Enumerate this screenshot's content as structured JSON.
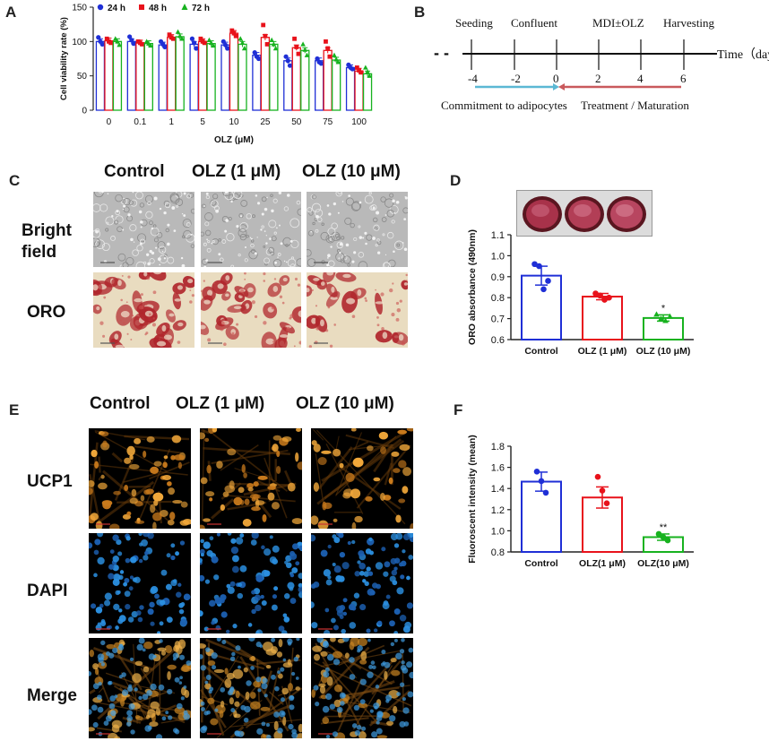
{
  "panels": {
    "a": "A",
    "b": "B",
    "c": "C",
    "d": "D",
    "e": "E",
    "f": "F"
  },
  "panel_c": {
    "columns": [
      "Control",
      "OLZ (1 μM)",
      "OLZ (10 μM)"
    ],
    "rows": [
      "Bright field",
      "ORO"
    ]
  },
  "panel_e": {
    "columns": [
      "Control",
      "OLZ (1 μM)",
      "OLZ (10 μM)"
    ],
    "rows": [
      "UCP1",
      "DAPI",
      "Merge"
    ]
  },
  "panel_b": {
    "dash": "- -",
    "events": [
      "Seeding",
      "Confluent",
      "MDI±OLZ",
      "Harvesting"
    ],
    "ticks": [
      "-4",
      "-2",
      "0",
      "2",
      "4",
      "6"
    ],
    "axis_label": "Time（days）",
    "phase1": "Commitment to adipocytes",
    "phase2": "Treatment / Maturation",
    "colors": {
      "phase1": "#5bb8d4",
      "phase2": "#c9595c"
    }
  },
  "chart_data": [
    {
      "id": "A",
      "type": "bar",
      "xlabel": "OLZ (μM)",
      "ylabel": "Cell viability rate (%)",
      "ylim": [
        0,
        150
      ],
      "yticks": [
        0,
        50,
        100,
        150
      ],
      "categories": [
        "0",
        "0.1",
        "1",
        "5",
        "10",
        "25",
        "50",
        "75",
        "100"
      ],
      "legend_position": "top-left",
      "series": [
        {
          "name": "24 h",
          "color": "#1f2fd6",
          "values": [
            100,
            100,
            95,
            96,
            95,
            80,
            72,
            72,
            62
          ],
          "points": [
            [
              106,
              100,
              96
            ],
            [
              107,
              102,
              97
            ],
            [
              100,
              96,
              92
            ],
            [
              104,
              98,
              90
            ],
            [
              100,
              95,
              90
            ],
            [
              84,
              78,
              75
            ],
            [
              78,
              72,
              65
            ],
            [
              75,
              70,
              68
            ],
            [
              66,
              62,
              60
            ]
          ]
        },
        {
          "name": "48 h",
          "color": "#e8121b",
          "values": [
            101,
            98,
            106,
            100,
            112,
            106,
            91,
            87,
            57
          ],
          "points": [
            [
              104,
              100,
              98
            ],
            [
              100,
              98,
              96
            ],
            [
              110,
              106,
              104
            ],
            [
              104,
              100,
              98
            ],
            [
              116,
              112,
              108
            ],
            [
              124,
              108,
              96
            ],
            [
              104,
              92,
              82
            ],
            [
              100,
              90,
              78
            ],
            [
              62,
              58,
              55
            ]
          ]
        },
        {
          "name": "72 h",
          "color": "#17b21f",
          "values": [
            100,
            97,
            107,
            97,
            96,
            96,
            87,
            73,
            53
          ],
          "points": [
            [
              104,
              100,
              95
            ],
            [
              100,
              97,
              94
            ],
            [
              114,
              108,
              104
            ],
            [
              102,
              98,
              94
            ],
            [
              104,
              98,
              90
            ],
            [
              102,
              96,
              90
            ],
            [
              96,
              88,
              80
            ],
            [
              80,
              74,
              70
            ],
            [
              62,
              56,
              50
            ]
          ]
        }
      ]
    },
    {
      "id": "D",
      "type": "bar",
      "ylabel": "ORO absorbance (490nm)",
      "ylim": [
        0.6,
        1.1
      ],
      "yticks": [
        0.6,
        0.7,
        0.8,
        0.9,
        1.0,
        1.1
      ],
      "categories": [
        "Control",
        "OLZ (1 μM)",
        "OLZ (10 μM)"
      ],
      "values": [
        0.905,
        0.805,
        0.703
      ],
      "errors": [
        0.045,
        0.015,
        0.015
      ],
      "colors": [
        "#1f2fd6",
        "#e8121b",
        "#17b21f"
      ],
      "markers": [
        "circle",
        "circle",
        "triangle"
      ],
      "points": [
        [
          0.96,
          0.95,
          0.84,
          0.88
        ],
        [
          0.82,
          0.81,
          0.79,
          0.8
        ],
        [
          0.72,
          0.7,
          0.69,
          0.71
        ]
      ],
      "annotations": [
        "",
        "",
        "*"
      ]
    },
    {
      "id": "F",
      "type": "bar",
      "ylabel": "Fluoroscent intensity (mean)",
      "ylim": [
        0.8,
        1.8
      ],
      "yticks": [
        0.8,
        1.0,
        1.2,
        1.4,
        1.6,
        1.8
      ],
      "categories": [
        "Control",
        "OLZ(1 μM)",
        "OLZ(10 μM)"
      ],
      "values": [
        1.465,
        1.315,
        0.94
      ],
      "errors": [
        0.09,
        0.1,
        0.03
      ],
      "colors": [
        "#1f2fd6",
        "#e8121b",
        "#17b21f"
      ],
      "points": [
        [
          1.56,
          1.47,
          1.36
        ],
        [
          1.51,
          1.38,
          1.26
        ],
        [
          0.97,
          0.94,
          0.91
        ]
      ],
      "annotations": [
        "",
        "",
        "**"
      ]
    }
  ]
}
